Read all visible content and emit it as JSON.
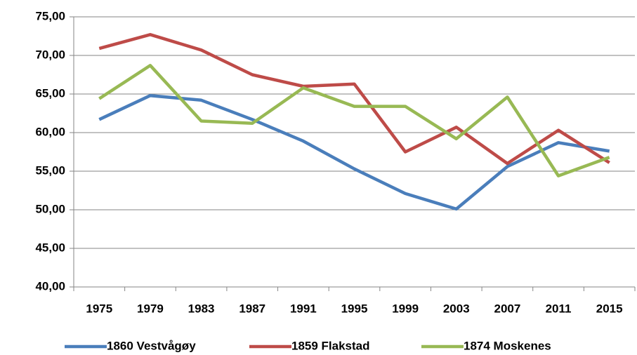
{
  "chart_data": {
    "type": "line",
    "categories": [
      "1975",
      "1979",
      "1983",
      "1987",
      "1991",
      "1995",
      "1999",
      "2003",
      "2007",
      "2011",
      "2015"
    ],
    "series": [
      {
        "name": "1860 Vestvågøy",
        "color": "#4a7ebb",
        "values": [
          61.7,
          64.8,
          64.2,
          61.7,
          58.9,
          55.3,
          52.1,
          50.1,
          55.6,
          58.7,
          57.6
        ]
      },
      {
        "name": "1859 Flakstad",
        "color": "#be4b48",
        "values": [
          70.9,
          72.7,
          70.7,
          67.5,
          66.0,
          66.3,
          57.5,
          60.7,
          56.0,
          60.3,
          56.1
        ]
      },
      {
        "name": "1874 Moskenes",
        "color": "#98b954",
        "values": [
          64.4,
          68.7,
          61.5,
          61.2,
          65.8,
          63.4,
          63.4,
          59.2,
          64.6,
          54.4,
          56.8
        ]
      }
    ],
    "ylim": [
      40,
      75
    ],
    "yticks": [
      {
        "value": 40,
        "label": "40,00"
      },
      {
        "value": 45,
        "label": "45,00"
      },
      {
        "value": 50,
        "label": "50,00"
      },
      {
        "value": 55,
        "label": "55,00"
      },
      {
        "value": 60,
        "label": "60,00"
      },
      {
        "value": 65,
        "label": "65,00"
      },
      {
        "value": 70,
        "label": "70,00"
      },
      {
        "value": 75,
        "label": "75,00"
      }
    ],
    "grid": true,
    "legend": "bottom"
  }
}
